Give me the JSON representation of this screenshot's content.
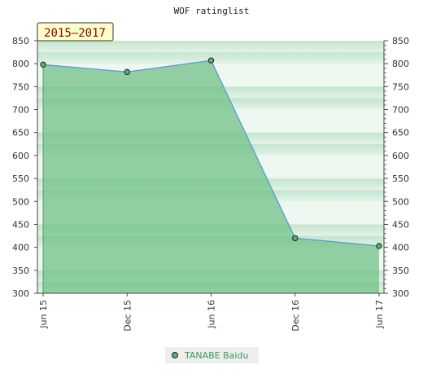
{
  "chart_data": {
    "type": "area",
    "title": "WOF ratinglist",
    "period_label": "2015–2017",
    "categories": [
      "Jun 15",
      "Dec 15",
      "Jun 16",
      "Dec 16",
      "Jun 17"
    ],
    "series": [
      {
        "name": "TANABE Baidu",
        "values": [
          798,
          782,
          807,
          420,
          403
        ]
      }
    ],
    "ylim": [
      300,
      850
    ],
    "yticks": [
      300,
      350,
      400,
      450,
      500,
      550,
      600,
      650,
      700,
      750,
      800,
      850
    ],
    "y_axis_both_sides": true,
    "legend_position": "bottom-center",
    "grid": true,
    "colors": {
      "area_fill": "#6dbf85",
      "line": "#5b9bd5",
      "marker": "#5aad6e",
      "band_light": "#eaf6ee",
      "band_dark": "#c7e6d1",
      "badge_bg": "#ffffcc"
    }
  }
}
